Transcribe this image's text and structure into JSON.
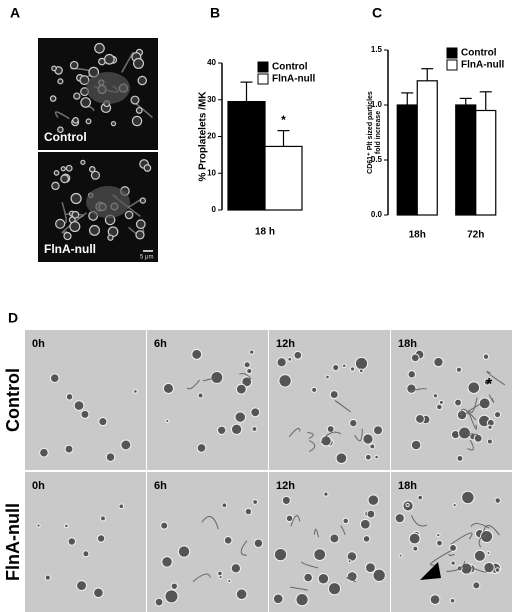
{
  "panel_a": {
    "label": "A",
    "images": [
      {
        "caption": "Control"
      },
      {
        "caption": "FlnA-null"
      }
    ],
    "scale_bar": "5 μm"
  },
  "chart_data": [
    {
      "type": "bar",
      "panel": "B",
      "ylabel": "% Proplatelets /MK",
      "categories": [
        "18 h"
      ],
      "series": [
        {
          "name": "Control",
          "color": "#000000",
          "values": [
            29.5
          ],
          "errors": [
            5.3
          ]
        },
        {
          "name": "FlnA-null",
          "color": "#ffffff",
          "values": [
            17.3
          ],
          "errors": [
            4.3
          ],
          "annotations": [
            "*"
          ]
        }
      ],
      "ylim": [
        0,
        40
      ],
      "yticks": [
        0,
        10,
        20,
        30,
        40
      ]
    },
    {
      "type": "bar",
      "panel": "C",
      "ylabel": [
        "CD61⁺ Plt sized particles",
        "fold increase"
      ],
      "categories": [
        "18h",
        "72h"
      ],
      "series": [
        {
          "name": "Control",
          "color": "#000000",
          "values": [
            1.0,
            1.0
          ],
          "errors": [
            0.11,
            0.06
          ]
        },
        {
          "name": "FlnA-null",
          "color": "#ffffff",
          "values": [
            1.22,
            0.95
          ],
          "errors": [
            0.11,
            0.17
          ]
        }
      ],
      "ylim": [
        0,
        1.5
      ],
      "yticks": [
        {
          "value": 0,
          "label": "0.0"
        },
        {
          "value": 0.5,
          "label": "0.5"
        },
        {
          "value": 1,
          "label": "1.0"
        },
        {
          "value": 1.5,
          "label": "1.5"
        }
      ]
    }
  ],
  "panel_d": {
    "label": "D",
    "columns": [
      "0h",
      "6h",
      "12h",
      "18h"
    ],
    "rows": [
      {
        "label": "Control",
        "annotation": "*"
      },
      {
        "label": "FlnA-null"
      }
    ]
  }
}
